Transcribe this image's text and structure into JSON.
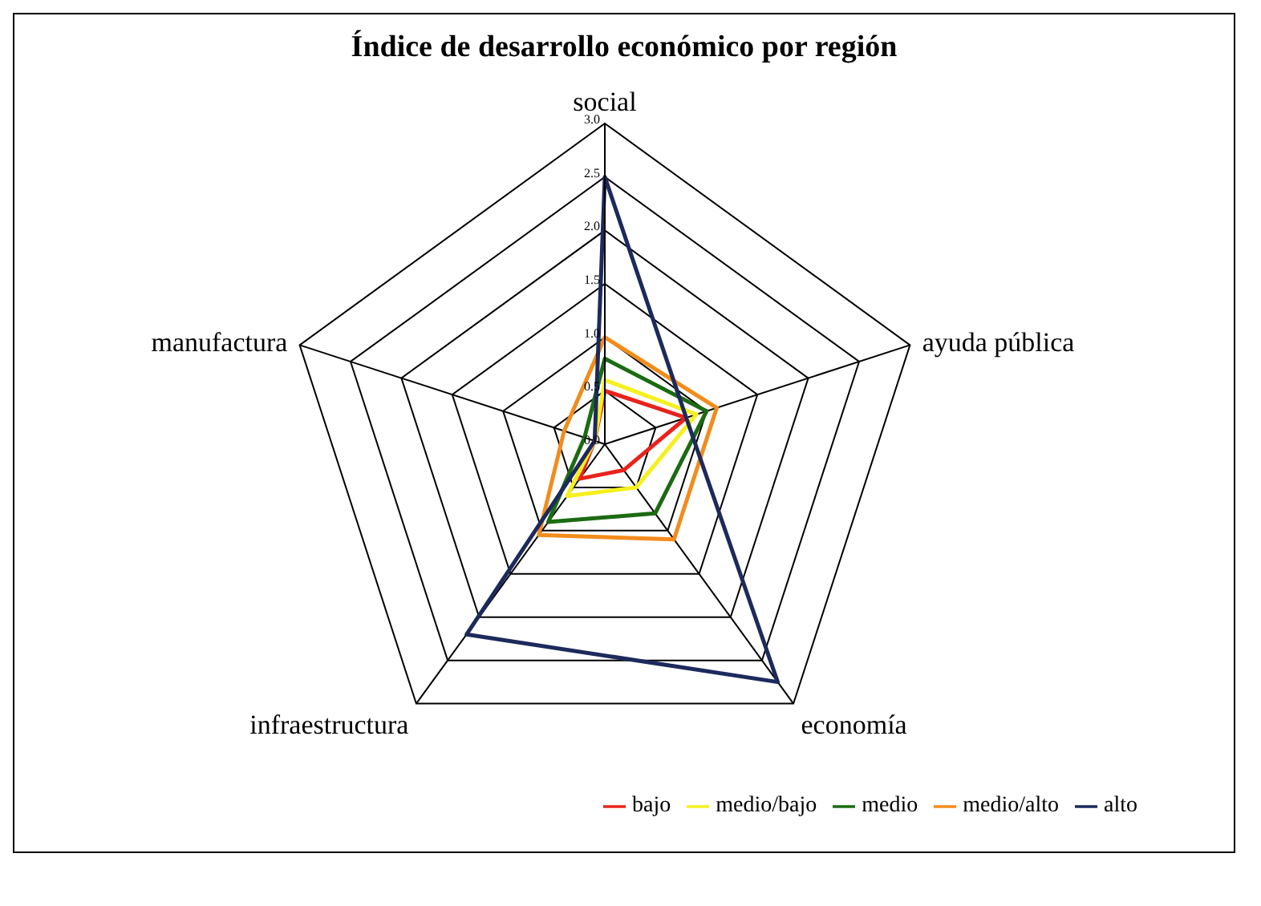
{
  "chart_data": {
    "type": "radar",
    "title": "Índice de desarrollo económico por región",
    "categories": [
      "social",
      "ayuda pública",
      "economía",
      "infraestructura",
      "manufactura"
    ],
    "series": [
      {
        "name": "bajo",
        "color": "#e8231c",
        "values": [
          0.5,
          0.8,
          0.3,
          0.4,
          0.1
        ]
      },
      {
        "name": "medio/bajo",
        "color": "#f5f01e",
        "values": [
          0.6,
          0.9,
          0.5,
          0.6,
          0.1
        ]
      },
      {
        "name": "medio",
        "color": "#1c6b12",
        "values": [
          0.8,
          1.0,
          0.8,
          0.9,
          0.2
        ]
      },
      {
        "name": "medio/alto",
        "color": "#f28c1c",
        "values": [
          1.0,
          1.1,
          1.1,
          1.05,
          0.4
        ]
      },
      {
        "name": "alto",
        "color": "#1c2a5c",
        "values": [
          2.5,
          0.8,
          2.75,
          2.2,
          0.1
        ]
      }
    ],
    "ylim": [
      0,
      3
    ],
    "yticks": [
      {
        "value": 0,
        "label": "0.0"
      },
      {
        "value": 0.5,
        "label": "0.5"
      },
      {
        "value": 1,
        "label": "1.0"
      },
      {
        "value": 1.5,
        "label": "1.5"
      },
      {
        "value": 2,
        "label": "2.0"
      },
      {
        "value": 2.5,
        "label": "2.5"
      },
      {
        "value": 3,
        "label": "3.0"
      }
    ],
    "grid": true,
    "legend": "bottom right",
    "marker": "none"
  }
}
